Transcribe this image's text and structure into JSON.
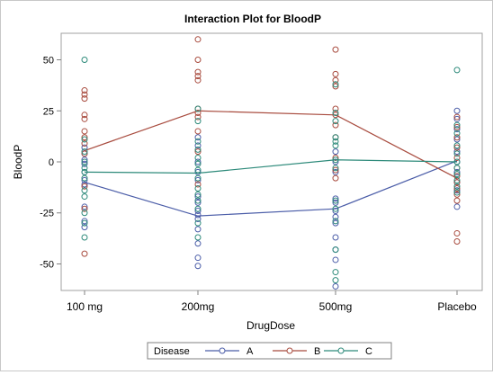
{
  "chart_data": {
    "type": "scatter",
    "title": "Interaction Plot for BloodP",
    "xlabel": "DrugDose",
    "ylabel": "BloodP",
    "categories": [
      "100 mg",
      "200mg",
      "500mg",
      "Placebo"
    ],
    "yticks": [
      -50,
      -25,
      0,
      25,
      50
    ],
    "ylim": [
      -63,
      63
    ],
    "grid": false,
    "legend": {
      "title": "Disease",
      "position": "bottom"
    },
    "series": [
      {
        "name": "A",
        "color": "#4b5da8",
        "means": [
          -10,
          -26.5,
          -23,
          0.5
        ],
        "points": [
          [
            1,
            -32
          ],
          [
            1,
            -29
          ],
          [
            1,
            -22
          ],
          [
            1,
            -11
          ],
          [
            1,
            -9
          ],
          [
            1,
            -5
          ],
          [
            1,
            -1
          ],
          [
            1,
            1
          ],
          [
            1,
            4
          ],
          [
            1,
            7
          ],
          [
            2,
            -51
          ],
          [
            2,
            -47
          ],
          [
            2,
            -40
          ],
          [
            2,
            -33
          ],
          [
            2,
            -28
          ],
          [
            2,
            -26
          ],
          [
            2,
            -24
          ],
          [
            2,
            -20
          ],
          [
            2,
            -17
          ],
          [
            2,
            -9
          ],
          [
            2,
            -5
          ],
          [
            2,
            0
          ],
          [
            2,
            8
          ],
          [
            2,
            12
          ],
          [
            3,
            -61
          ],
          [
            3,
            -48
          ],
          [
            3,
            -43
          ],
          [
            3,
            -37
          ],
          [
            3,
            -30
          ],
          [
            3,
            -27
          ],
          [
            3,
            -24
          ],
          [
            3,
            -20
          ],
          [
            3,
            -18
          ],
          [
            3,
            -5
          ],
          [
            3,
            0
          ],
          [
            3,
            5
          ],
          [
            4,
            -22
          ],
          [
            4,
            -14
          ],
          [
            4,
            -10
          ],
          [
            4,
            -5
          ],
          [
            4,
            0
          ],
          [
            4,
            5
          ],
          [
            4,
            11
          ],
          [
            4,
            16
          ],
          [
            4,
            21
          ],
          [
            4,
            25
          ]
        ]
      },
      {
        "name": "B",
        "color": "#a84b3e",
        "means": [
          5.5,
          25,
          23,
          -8
        ],
        "points": [
          [
            1,
            -45
          ],
          [
            1,
            -23
          ],
          [
            1,
            -12
          ],
          [
            1,
            4
          ],
          [
            1,
            9
          ],
          [
            1,
            12
          ],
          [
            1,
            15
          ],
          [
            1,
            21
          ],
          [
            1,
            23
          ],
          [
            1,
            31
          ],
          [
            1,
            33
          ],
          [
            1,
            35
          ],
          [
            2,
            -11
          ],
          [
            2,
            5
          ],
          [
            2,
            15
          ],
          [
            2,
            22
          ],
          [
            2,
            24
          ],
          [
            2,
            26
          ],
          [
            2,
            40
          ],
          [
            2,
            42
          ],
          [
            2,
            44
          ],
          [
            2,
            50
          ],
          [
            2,
            60
          ],
          [
            3,
            -8
          ],
          [
            3,
            -4
          ],
          [
            3,
            2
          ],
          [
            3,
            12
          ],
          [
            3,
            18
          ],
          [
            3,
            23
          ],
          [
            3,
            26
          ],
          [
            3,
            37
          ],
          [
            3,
            40
          ],
          [
            3,
            43
          ],
          [
            3,
            55
          ],
          [
            4,
            -39
          ],
          [
            4,
            -35
          ],
          [
            4,
            -19
          ],
          [
            4,
            -16
          ],
          [
            4,
            -13
          ],
          [
            4,
            -10
          ],
          [
            4,
            -7
          ],
          [
            4,
            -3
          ],
          [
            4,
            2
          ],
          [
            4,
            7
          ],
          [
            4,
            12
          ],
          [
            4,
            17
          ],
          [
            4,
            22
          ]
        ]
      },
      {
        "name": "C",
        "color": "#2d8a7a",
        "means": [
          -5,
          -5.5,
          1,
          0
        ],
        "points": [
          [
            1,
            -37
          ],
          [
            1,
            -30
          ],
          [
            1,
            -25
          ],
          [
            1,
            -17
          ],
          [
            1,
            -14
          ],
          [
            1,
            -8
          ],
          [
            1,
            -5
          ],
          [
            1,
            -3
          ],
          [
            1,
            0
          ],
          [
            1,
            5
          ],
          [
            1,
            11
          ],
          [
            1,
            50
          ],
          [
            2,
            -37
          ],
          [
            2,
            -30
          ],
          [
            2,
            -23
          ],
          [
            2,
            -19
          ],
          [
            2,
            -16
          ],
          [
            2,
            -13
          ],
          [
            2,
            -8
          ],
          [
            2,
            -4
          ],
          [
            2,
            -1
          ],
          [
            2,
            2
          ],
          [
            2,
            6
          ],
          [
            2,
            10
          ],
          [
            2,
            20
          ],
          [
            2,
            26
          ],
          [
            3,
            -58
          ],
          [
            3,
            -54
          ],
          [
            3,
            -43
          ],
          [
            3,
            -29
          ],
          [
            3,
            -23
          ],
          [
            3,
            -19
          ],
          [
            3,
            -3
          ],
          [
            3,
            1
          ],
          [
            3,
            8
          ],
          [
            3,
            10
          ],
          [
            3,
            12
          ],
          [
            3,
            20
          ],
          [
            3,
            24
          ],
          [
            3,
            38
          ],
          [
            4,
            -15
          ],
          [
            4,
            -12
          ],
          [
            4,
            -9
          ],
          [
            4,
            -6
          ],
          [
            4,
            -3
          ],
          [
            4,
            0
          ],
          [
            4,
            4
          ],
          [
            4,
            8
          ],
          [
            4,
            14
          ],
          [
            4,
            18
          ],
          [
            4,
            45
          ]
        ]
      }
    ]
  }
}
